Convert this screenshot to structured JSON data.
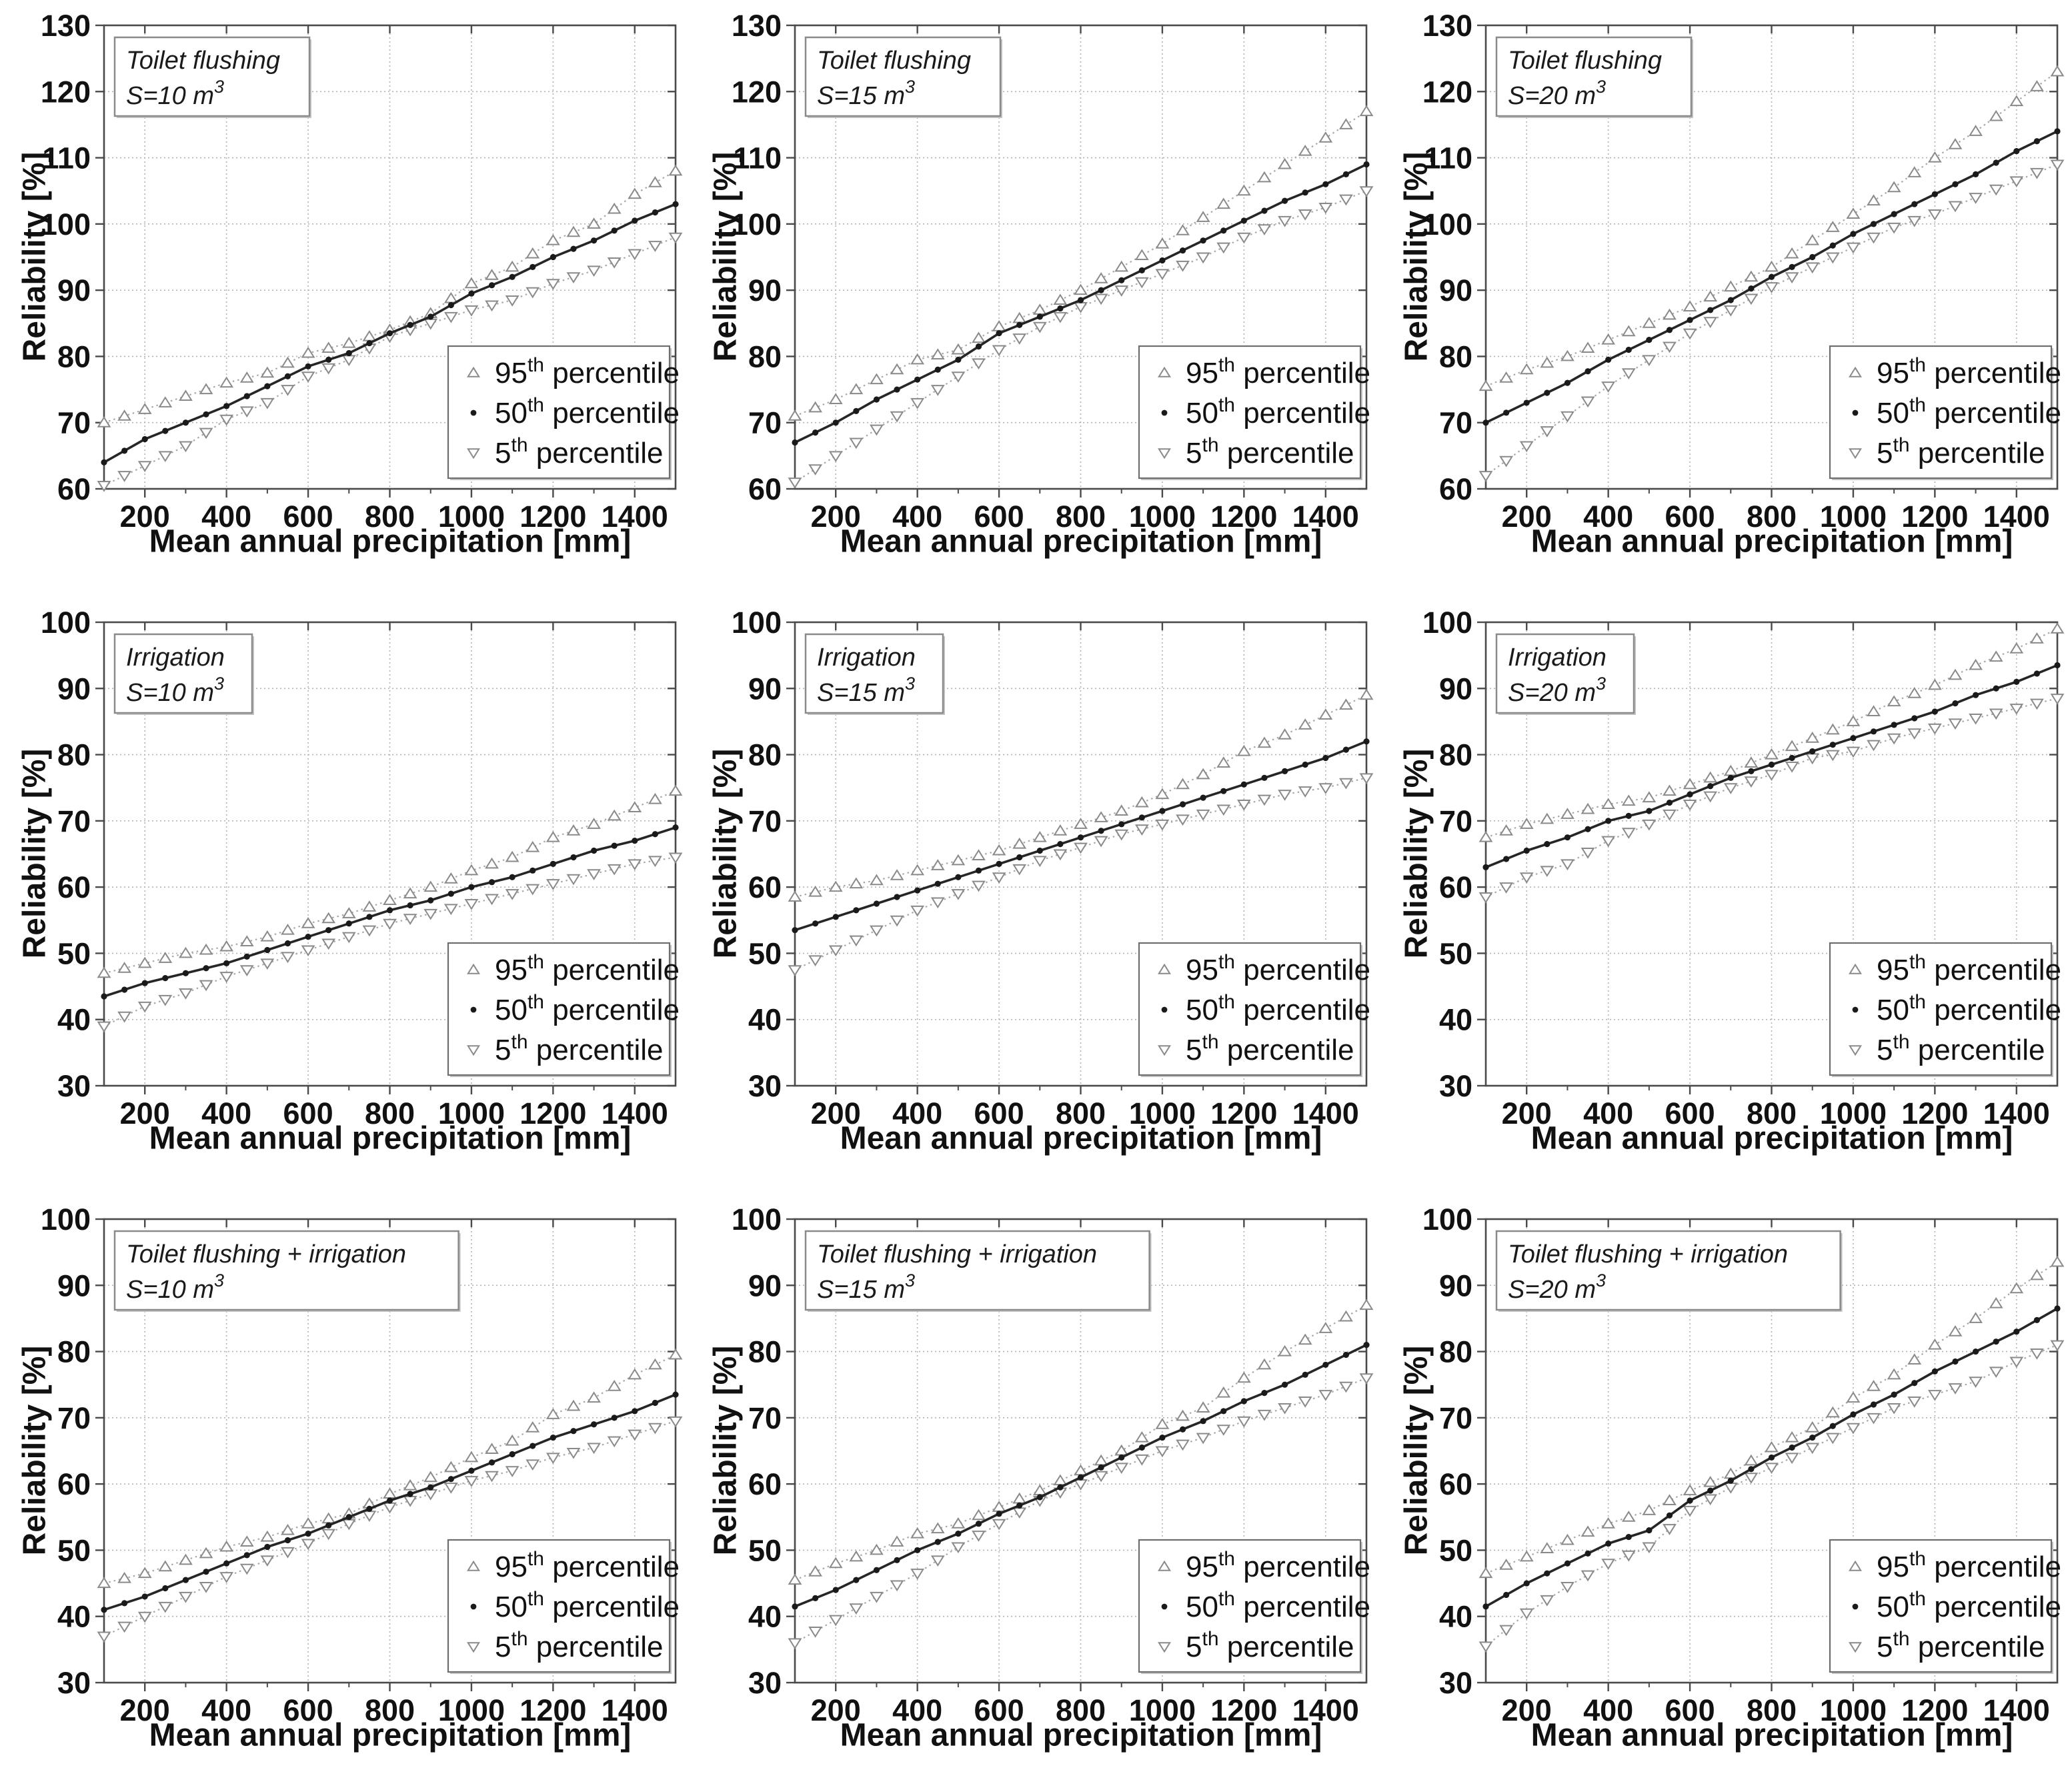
{
  "figure": {
    "x_range": [
      100,
      1500
    ],
    "x_ticks": [
      200,
      400,
      600,
      800,
      1000,
      1200,
      1400
    ],
    "x_minor_ticks": [
      300,
      500,
      700,
      900,
      1100,
      1300
    ],
    "colors": {
      "axis": "#4a4a4a",
      "grid": "#b3b3b3",
      "p50_line": "#262626",
      "p50_marker": "#1a1a1a",
      "p95_line": "#a8a8a8",
      "marker_outline": "#8a8a8a",
      "box_border": "#8a8a8a",
      "legend_border": "#6e6e6e",
      "text": "#111111"
    },
    "legend": [
      {
        "id": "p95",
        "marker": "triangle-up",
        "base": "95",
        "sup": "th",
        "rest": " percentile"
      },
      {
        "id": "p50",
        "marker": "dot",
        "base": "50",
        "sup": "th",
        "rest": " percentile"
      },
      {
        "id": "p05",
        "marker": "triangle-down",
        "base": "5",
        "sup": "th",
        "rest": " percentile"
      }
    ]
  },
  "chart_data": [
    {
      "type": "line",
      "annotation": {
        "line1": "Toilet flushing",
        "line2_base": "S=10 m",
        "line2_sup": "3"
      },
      "xlabel": "Mean annual precipitation [mm]",
      "ylabel": "Reliability [%]",
      "ylim": [
        60,
        130
      ],
      "y_ticks": [
        60,
        70,
        80,
        90,
        100,
        110,
        120,
        130
      ],
      "x": [
        100,
        200,
        300,
        400,
        500,
        600,
        700,
        800,
        900,
        1000,
        1100,
        1200,
        1300,
        1400,
        1500
      ],
      "series": [
        {
          "id": "p95",
          "name": "95th percentile",
          "marker": "triangle-up",
          "values": [
            70,
            72,
            74,
            76,
            77.5,
            80.5,
            82,
            84,
            86.5,
            91,
            93.5,
            97.5,
            100,
            104.5,
            108
          ]
        },
        {
          "id": "p50",
          "name": "50th percentile",
          "marker": "dot",
          "values": [
            64,
            67.5,
            70,
            72.5,
            75.5,
            78.5,
            80.5,
            83.5,
            86,
            89.5,
            92,
            95,
            97.5,
            100.5,
            103
          ]
        },
        {
          "id": "p05",
          "name": "5th percentile",
          "marker": "triangle-down",
          "values": [
            60.5,
            63.5,
            66.5,
            70.5,
            73,
            77,
            79.5,
            83,
            85,
            87,
            88.5,
            91,
            93,
            95.5,
            98
          ]
        }
      ]
    },
    {
      "type": "line",
      "annotation": {
        "line1": "Toilet flushing",
        "line2_base": "S=15 m",
        "line2_sup": "3"
      },
      "xlabel": "Mean annual precipitation [mm]",
      "ylabel": "Reliability [%]",
      "ylim": [
        60,
        130
      ],
      "y_ticks": [
        60,
        70,
        80,
        90,
        100,
        110,
        120,
        130
      ],
      "x": [
        100,
        200,
        300,
        400,
        500,
        600,
        700,
        800,
        900,
        1000,
        1100,
        1200,
        1300,
        1400,
        1500
      ],
      "series": [
        {
          "id": "p95",
          "name": "95th percentile",
          "marker": "triangle-up",
          "values": [
            71,
            73.5,
            76.5,
            79.5,
            81,
            84.5,
            87,
            90,
            93.5,
            97,
            101,
            105,
            109,
            113,
            117
          ]
        },
        {
          "id": "p50",
          "name": "50th percentile",
          "marker": "dot",
          "values": [
            67,
            70,
            73.5,
            76.5,
            79.5,
            83.5,
            86,
            88.5,
            91.5,
            94.5,
            97.5,
            100.5,
            103.5,
            106,
            109
          ]
        },
        {
          "id": "p05",
          "name": "5th percentile",
          "marker": "triangle-down",
          "values": [
            61,
            65,
            69,
            73,
            77,
            81,
            84.5,
            87.5,
            90,
            92.5,
            95,
            98,
            100.5,
            102.5,
            105
          ]
        }
      ]
    },
    {
      "type": "line",
      "annotation": {
        "line1": "Toilet flushing",
        "line2_base": "S=20 m",
        "line2_sup": "3"
      },
      "xlabel": "Mean annual precipitation [mm]",
      "ylabel": "Reliability [%]",
      "ylim": [
        60,
        130
      ],
      "y_ticks": [
        60,
        70,
        80,
        90,
        100,
        110,
        120,
        130
      ],
      "x": [
        100,
        200,
        300,
        400,
        500,
        600,
        700,
        800,
        900,
        1000,
        1100,
        1200,
        1300,
        1400,
        1500
      ],
      "series": [
        {
          "id": "p95",
          "name": "95th percentile",
          "marker": "triangle-up",
          "values": [
            75.5,
            78,
            80,
            82.5,
            85,
            87.5,
            90.5,
            93.5,
            97.5,
            101.5,
            105.5,
            110,
            114,
            118.5,
            123
          ]
        },
        {
          "id": "p50",
          "name": "50th percentile",
          "marker": "dot",
          "values": [
            70,
            73,
            76,
            79.5,
            82.5,
            85.5,
            88.5,
            92,
            95,
            98.5,
            101.5,
            104.5,
            107.5,
            111,
            114
          ]
        },
        {
          "id": "p05",
          "name": "5th percentile",
          "marker": "triangle-down",
          "values": [
            62,
            66.5,
            71,
            75.5,
            79.5,
            83.5,
            87,
            90.5,
            93.5,
            96.5,
            99.5,
            101.5,
            104,
            106.5,
            109
          ]
        }
      ]
    },
    {
      "type": "line",
      "annotation": {
        "line1": "Irrigation",
        "line2_base": "S=10 m",
        "line2_sup": "3"
      },
      "xlabel": "Mean annual precipitation [mm]",
      "ylabel": "Reliability [%]",
      "ylim": [
        30,
        100
      ],
      "y_ticks": [
        30,
        40,
        50,
        60,
        70,
        80,
        90,
        100
      ],
      "x": [
        100,
        200,
        300,
        400,
        500,
        600,
        700,
        800,
        900,
        1000,
        1100,
        1200,
        1300,
        1400,
        1500
      ],
      "series": [
        {
          "id": "p95",
          "name": "95th percentile",
          "marker": "triangle-up",
          "values": [
            47,
            48.5,
            50,
            51,
            52.5,
            54.5,
            56,
            58,
            60,
            62.5,
            64.5,
            67.5,
            69.5,
            72,
            74.5
          ]
        },
        {
          "id": "p50",
          "name": "50th percentile",
          "marker": "dot",
          "values": [
            43.5,
            45.5,
            47,
            48.5,
            50.5,
            52.5,
            54.5,
            56.5,
            58,
            60,
            61.5,
            63.5,
            65.5,
            67,
            69
          ]
        },
        {
          "id": "p05",
          "name": "5th percentile",
          "marker": "triangle-down",
          "values": [
            39,
            42,
            44,
            46.5,
            48.5,
            50.5,
            52.5,
            54.5,
            56,
            57.5,
            59,
            60.5,
            62,
            63.5,
            64.5
          ]
        }
      ]
    },
    {
      "type": "line",
      "annotation": {
        "line1": "Irrigation",
        "line2_base": "S=15 m",
        "line2_sup": "3"
      },
      "xlabel": "Mean annual precipitation [mm]",
      "ylabel": "Reliability [%]",
      "ylim": [
        30,
        100
      ],
      "y_ticks": [
        30,
        40,
        50,
        60,
        70,
        80,
        90,
        100
      ],
      "x": [
        100,
        200,
        300,
        400,
        500,
        600,
        700,
        800,
        900,
        1000,
        1100,
        1200,
        1300,
        1400,
        1500
      ],
      "series": [
        {
          "id": "p95",
          "name": "95th percentile",
          "marker": "triangle-up",
          "values": [
            58.5,
            60,
            61,
            62.5,
            64,
            65.5,
            67.5,
            69.5,
            71.5,
            74,
            77,
            80.5,
            83,
            86,
            89
          ]
        },
        {
          "id": "p50",
          "name": "50th percentile",
          "marker": "dot",
          "values": [
            53.5,
            55.5,
            57.5,
            59.5,
            61.5,
            63.5,
            65.5,
            67.5,
            69.5,
            71.5,
            73.5,
            75.5,
            77.5,
            79.5,
            82
          ]
        },
        {
          "id": "p05",
          "name": "5th percentile",
          "marker": "triangle-down",
          "values": [
            47.5,
            50.5,
            53.5,
            56.5,
            59,
            61.5,
            64,
            66,
            68,
            69.5,
            71,
            72.5,
            74,
            75,
            76.5
          ]
        }
      ]
    },
    {
      "type": "line",
      "annotation": {
        "line1": "Irrigation",
        "line2_base": "S=20 m",
        "line2_sup": "3"
      },
      "xlabel": "Mean annual precipitation [mm]",
      "ylabel": "Reliability [%]",
      "ylim": [
        30,
        100
      ],
      "y_ticks": [
        30,
        40,
        50,
        60,
        70,
        80,
        90,
        100
      ],
      "x": [
        100,
        200,
        300,
        400,
        500,
        600,
        700,
        800,
        900,
        1000,
        1100,
        1200,
        1300,
        1400,
        1500
      ],
      "series": [
        {
          "id": "p95",
          "name": "95th percentile",
          "marker": "triangle-up",
          "values": [
            67.5,
            69.5,
            71,
            72.5,
            73.5,
            75.5,
            77.5,
            80,
            82.5,
            85,
            88,
            90.5,
            93.5,
            96,
            99
          ]
        },
        {
          "id": "p50",
          "name": "50th percentile",
          "marker": "dot",
          "values": [
            63,
            65.5,
            67.5,
            70,
            71.5,
            74,
            76.5,
            78.5,
            80.5,
            82.5,
            84.5,
            86.5,
            89,
            91,
            93.5
          ]
        },
        {
          "id": "p05",
          "name": "5th percentile",
          "marker": "triangle-down",
          "values": [
            58.5,
            61.5,
            63.5,
            67,
            69.5,
            72.5,
            75,
            77,
            79.5,
            80.5,
            82.5,
            84,
            85.5,
            87,
            88.5
          ]
        }
      ]
    },
    {
      "type": "line",
      "annotation": {
        "line1": "Toilet flushing + irrigation",
        "line2_base": "S=10 m",
        "line2_sup": "3"
      },
      "xlabel": "Mean annual precipitation [mm]",
      "ylabel": "Reliability [%]",
      "ylim": [
        30,
        100
      ],
      "y_ticks": [
        30,
        40,
        50,
        60,
        70,
        80,
        90,
        100
      ],
      "x": [
        100,
        200,
        300,
        400,
        500,
        600,
        700,
        800,
        900,
        1000,
        1100,
        1200,
        1300,
        1400,
        1500
      ],
      "series": [
        {
          "id": "p95",
          "name": "95th percentile",
          "marker": "triangle-up",
          "values": [
            45,
            46.5,
            48.5,
            50.5,
            52,
            54,
            55.5,
            58.5,
            61,
            64,
            66.5,
            70.5,
            73,
            76.5,
            79.5
          ]
        },
        {
          "id": "p50",
          "name": "50th percentile",
          "marker": "dot",
          "values": [
            41,
            43,
            45.5,
            48,
            50.5,
            52.5,
            55,
            57.5,
            59.5,
            62,
            64.5,
            67,
            69,
            71,
            73.5
          ]
        },
        {
          "id": "p05",
          "name": "5th percentile",
          "marker": "triangle-down",
          "values": [
            37,
            40,
            43,
            46,
            48.5,
            51,
            54,
            56.5,
            58.5,
            60.5,
            62,
            64,
            65.5,
            67.5,
            69.5
          ]
        }
      ]
    },
    {
      "type": "line",
      "annotation": {
        "line1": "Toilet flushing + irrigation",
        "line2_base": "S=15 m",
        "line2_sup": "3"
      },
      "xlabel": "Mean annual precipitation [mm]",
      "ylabel": "Reliability [%]",
      "ylim": [
        30,
        100
      ],
      "y_ticks": [
        30,
        40,
        50,
        60,
        70,
        80,
        90,
        100
      ],
      "x": [
        100,
        200,
        300,
        400,
        500,
        600,
        700,
        800,
        900,
        1000,
        1100,
        1200,
        1300,
        1400,
        1500
      ],
      "series": [
        {
          "id": "p95",
          "name": "95th percentile",
          "marker": "triangle-up",
          "values": [
            45.5,
            48,
            50,
            52.5,
            54,
            56.5,
            59,
            62,
            65,
            69,
            71.5,
            76,
            80,
            83.5,
            87
          ]
        },
        {
          "id": "p50",
          "name": "50th percentile",
          "marker": "dot",
          "values": [
            41.5,
            44,
            47,
            50,
            52.5,
            55.5,
            58,
            61,
            64,
            67,
            69.5,
            72.5,
            75,
            78,
            81
          ]
        },
        {
          "id": "p05",
          "name": "5th percentile",
          "marker": "triangle-down",
          "values": [
            36,
            39.5,
            43,
            46.5,
            50.5,
            54,
            57.5,
            60,
            62.5,
            65,
            67,
            69.5,
            71.5,
            73.5,
            76
          ]
        }
      ]
    },
    {
      "type": "line",
      "annotation": {
        "line1": "Toilet flushing + irrigation",
        "line2_base": "S=20 m",
        "line2_sup": "3"
      },
      "xlabel": "Mean annual precipitation [mm]",
      "ylabel": "Reliability [%]",
      "ylim": [
        30,
        100
      ],
      "y_ticks": [
        30,
        40,
        50,
        60,
        70,
        80,
        90,
        100
      ],
      "x": [
        100,
        200,
        300,
        400,
        500,
        600,
        700,
        800,
        900,
        1000,
        1100,
        1200,
        1300,
        1400,
        1500
      ],
      "series": [
        {
          "id": "p95",
          "name": "95th percentile",
          "marker": "triangle-up",
          "values": [
            46.5,
            49,
            51.5,
            54,
            56,
            59,
            61.5,
            65.5,
            68.5,
            73,
            76.5,
            81,
            85,
            89.5,
            93.5
          ]
        },
        {
          "id": "p50",
          "name": "50th percentile",
          "marker": "dot",
          "values": [
            41.5,
            45,
            48,
            51,
            53,
            57.5,
            60.5,
            64,
            67,
            70.5,
            73.5,
            77,
            80,
            83,
            86.5
          ]
        },
        {
          "id": "p05",
          "name": "5th percentile",
          "marker": "triangle-down",
          "values": [
            35.5,
            40.5,
            44.5,
            48,
            50.5,
            56,
            59.5,
            62.5,
            65.5,
            68.5,
            71.5,
            73.5,
            75.5,
            78.5,
            81
          ]
        }
      ]
    }
  ]
}
